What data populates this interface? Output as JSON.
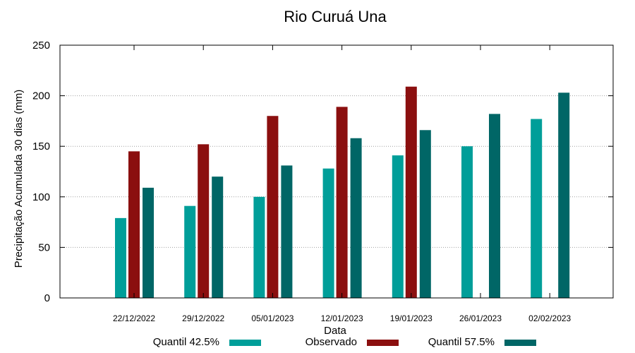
{
  "chart_data": {
    "type": "bar",
    "title": "Rio Curuá Una",
    "xlabel": "Data",
    "ylabel": "Precipitação Acumulada 30 dias (mm)",
    "ylim": [
      0,
      250
    ],
    "yticks": [
      0,
      50,
      100,
      150,
      200,
      250
    ],
    "grid": true,
    "legend_position": "bottom",
    "categories": [
      "22/12/2022",
      "29/12/2022",
      "05/01/2023",
      "12/01/2023",
      "19/01/2023",
      "26/01/2023",
      "02/02/2023"
    ],
    "series": [
      {
        "name": "Quantil 42.5%",
        "color": "#009e99",
        "values": [
          79,
          91,
          100,
          128,
          141,
          150,
          177
        ]
      },
      {
        "name": "Observado",
        "color": "#8b0f0f",
        "values": [
          145,
          152,
          180,
          189,
          209,
          null,
          null
        ]
      },
      {
        "name": "Quantil 57.5%",
        "color": "#006666",
        "values": [
          109,
          120,
          131,
          158,
          166,
          182,
          203
        ]
      }
    ]
  }
}
